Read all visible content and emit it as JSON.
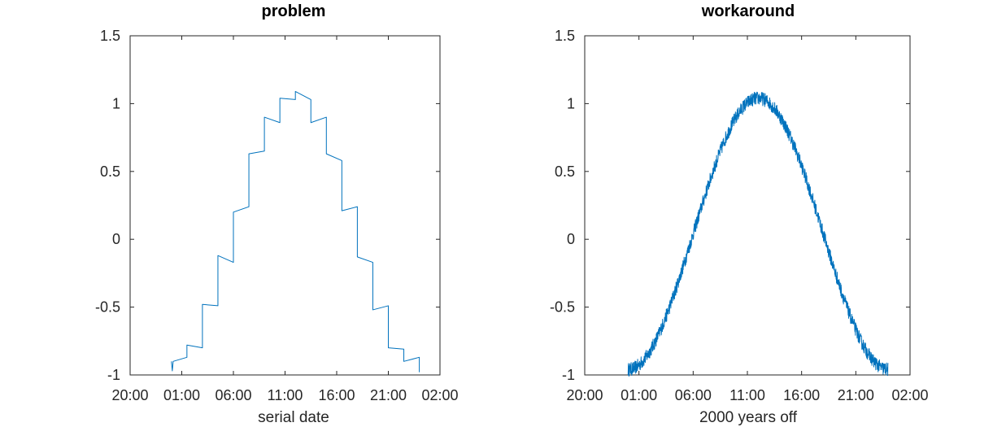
{
  "colors": {
    "series": "#0072bd",
    "axes": "#262626",
    "title": "#000000",
    "background": "#ffffff"
  },
  "chart_data": [
    {
      "type": "line",
      "title": "problem",
      "xlabel": "serial date",
      "ylabel": "",
      "xlim": [
        "20:00",
        "02:00"
      ],
      "ylim": [
        -1,
        1.5
      ],
      "x_ticks": [
        "20:00",
        "01:00",
        "06:00",
        "11:00",
        "16:00",
        "21:00",
        "02:00"
      ],
      "y_ticks": [
        "-1",
        "-0.5",
        "0",
        "0.5",
        "1",
        "1.5"
      ],
      "grid": false,
      "box": true,
      "series": [
        {
          "points": [
            [
              "00:00",
              -0.9
            ],
            [
              "00:05",
              -0.97
            ],
            [
              "00:10",
              -0.9
            ],
            [
              "01:30",
              -0.87
            ],
            [
              "01:30",
              -0.78
            ],
            [
              "03:00",
              -0.8
            ],
            [
              "03:00",
              -0.48
            ],
            [
              "04:30",
              -0.49
            ],
            [
              "04:30",
              -0.12
            ],
            [
              "06:00",
              -0.17
            ],
            [
              "06:00",
              0.2
            ],
            [
              "07:30",
              0.24
            ],
            [
              "07:30",
              0.63
            ],
            [
              "09:00",
              0.65
            ],
            [
              "09:00",
              0.9
            ],
            [
              "10:30",
              0.86
            ],
            [
              "10:30",
              1.04
            ],
            [
              "12:00",
              1.03
            ],
            [
              "12:00",
              1.09
            ],
            [
              "13:30",
              1.03
            ],
            [
              "13:30",
              0.86
            ],
            [
              "15:00",
              0.9
            ],
            [
              "15:00",
              0.63
            ],
            [
              "16:30",
              0.58
            ],
            [
              "16:30",
              0.21
            ],
            [
              "18:00",
              0.24
            ],
            [
              "18:00",
              -0.13
            ],
            [
              "19:30",
              -0.17
            ],
            [
              "19:30",
              -0.52
            ],
            [
              "21:00",
              -0.49
            ],
            [
              "21:00",
              -0.8
            ],
            [
              "22:30",
              -0.81
            ],
            [
              "22:30",
              -0.9
            ],
            [
              "24:00",
              -0.87
            ],
            [
              "24:00",
              -0.98
            ]
          ]
        }
      ]
    },
    {
      "type": "line",
      "title": "workaround",
      "xlabel": "2000 years off",
      "ylabel": "",
      "xlim": [
        "20:00",
        "02:00"
      ],
      "ylim": [
        -1,
        1.5
      ],
      "x_ticks": [
        "20:00",
        "01:00",
        "06:00",
        "11:00",
        "16:00",
        "21:00",
        "02:00"
      ],
      "y_ticks": [
        "-1",
        "-0.5",
        "0",
        "0.5",
        "1",
        "1.5"
      ],
      "grid": false,
      "box": true,
      "series": [
        {
          "function": "y = 0.04 - cos(2*pi*(t - 00:00)/24h) + uniform noise",
          "t_range": [
            "00:00",
            "24:00"
          ],
          "center": 0.04,
          "amplitude": 1.0,
          "noise_amplitude": 0.05
        }
      ]
    }
  ]
}
